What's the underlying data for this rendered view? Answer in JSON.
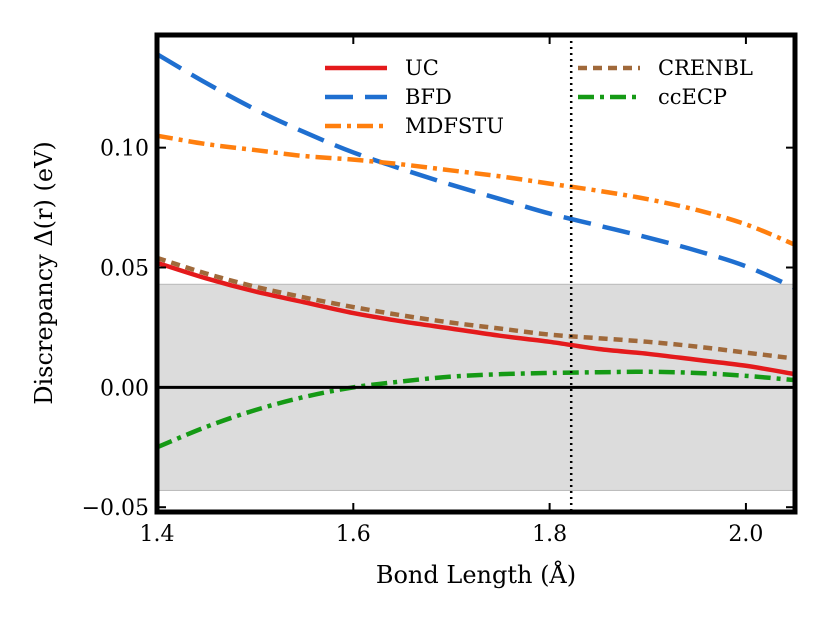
{
  "chart_data": {
    "type": "line",
    "title": "",
    "xlabel": "Bond Length (Å)",
    "ylabel": "Discrepancy Δ(r) (eV)",
    "xlim": [
      1.4,
      2.05
    ],
    "ylim": [
      -0.052,
      0.147
    ],
    "xticks": [
      1.4,
      1.6,
      1.8,
      2.0
    ],
    "xtick_labels": [
      "1.4",
      "1.6",
      "1.8",
      "2.0"
    ],
    "yticks": [
      -0.05,
      0.0,
      0.05,
      0.1
    ],
    "ytick_labels": [
      "−0.05",
      "0.00",
      "0.05",
      "0.10"
    ],
    "shaded_band": [
      -0.043,
      0.043
    ],
    "zero_line": 0.0,
    "equilibrium_line_x": 1.822,
    "grid": false,
    "legend_location": "top",
    "series": [
      {
        "name": "UC",
        "color": "#e41a1c",
        "style": "solid",
        "x": [
          1.4,
          1.45,
          1.5,
          1.55,
          1.6,
          1.65,
          1.7,
          1.75,
          1.8,
          1.85,
          1.9,
          1.95,
          2.0,
          2.05
        ],
        "y": [
          0.052,
          0.0455,
          0.04,
          0.0355,
          0.031,
          0.0275,
          0.0245,
          0.0215,
          0.019,
          0.016,
          0.014,
          0.0115,
          0.009,
          0.0055
        ]
      },
      {
        "name": "BFD",
        "color": "#1f6fd0",
        "style": "longdash",
        "x": [
          1.4,
          1.45,
          1.5,
          1.55,
          1.6,
          1.65,
          1.7,
          1.75,
          1.8,
          1.85,
          1.9,
          1.95,
          2.0,
          2.05
        ],
        "y": [
          0.139,
          0.127,
          0.116,
          0.1065,
          0.098,
          0.091,
          0.0845,
          0.0785,
          0.0725,
          0.0675,
          0.0625,
          0.057,
          0.0505,
          0.0415
        ]
      },
      {
        "name": "MDFSTU",
        "color": "#ff7f0e",
        "style": "dashdot",
        "x": [
          1.4,
          1.45,
          1.5,
          1.55,
          1.6,
          1.65,
          1.7,
          1.75,
          1.8,
          1.85,
          1.9,
          1.95,
          2.0,
          2.05
        ],
        "y": [
          0.105,
          0.1015,
          0.099,
          0.0965,
          0.095,
          0.093,
          0.0905,
          0.088,
          0.085,
          0.082,
          0.0785,
          0.074,
          0.068,
          0.0595
        ]
      },
      {
        "name": "CRENBL",
        "color": "#a0693a",
        "style": "dotted",
        "x": [
          1.4,
          1.45,
          1.5,
          1.55,
          1.6,
          1.65,
          1.7,
          1.75,
          1.8,
          1.85,
          1.9,
          1.95,
          2.0,
          2.05
        ],
        "y": [
          0.054,
          0.0475,
          0.042,
          0.0375,
          0.0335,
          0.03,
          0.027,
          0.0245,
          0.022,
          0.0205,
          0.019,
          0.017,
          0.0145,
          0.012
        ]
      },
      {
        "name": "ccECP",
        "color": "#159a15",
        "style": "dashdot",
        "x": [
          1.4,
          1.45,
          1.5,
          1.55,
          1.6,
          1.65,
          1.7,
          1.75,
          1.8,
          1.85,
          1.9,
          1.95,
          2.0,
          2.05
        ],
        "y": [
          -0.025,
          -0.0165,
          -0.0095,
          -0.004,
          0.0,
          0.0025,
          0.0045,
          0.0055,
          0.006,
          0.0063,
          0.0065,
          0.006,
          0.0048,
          0.003
        ]
      }
    ]
  }
}
